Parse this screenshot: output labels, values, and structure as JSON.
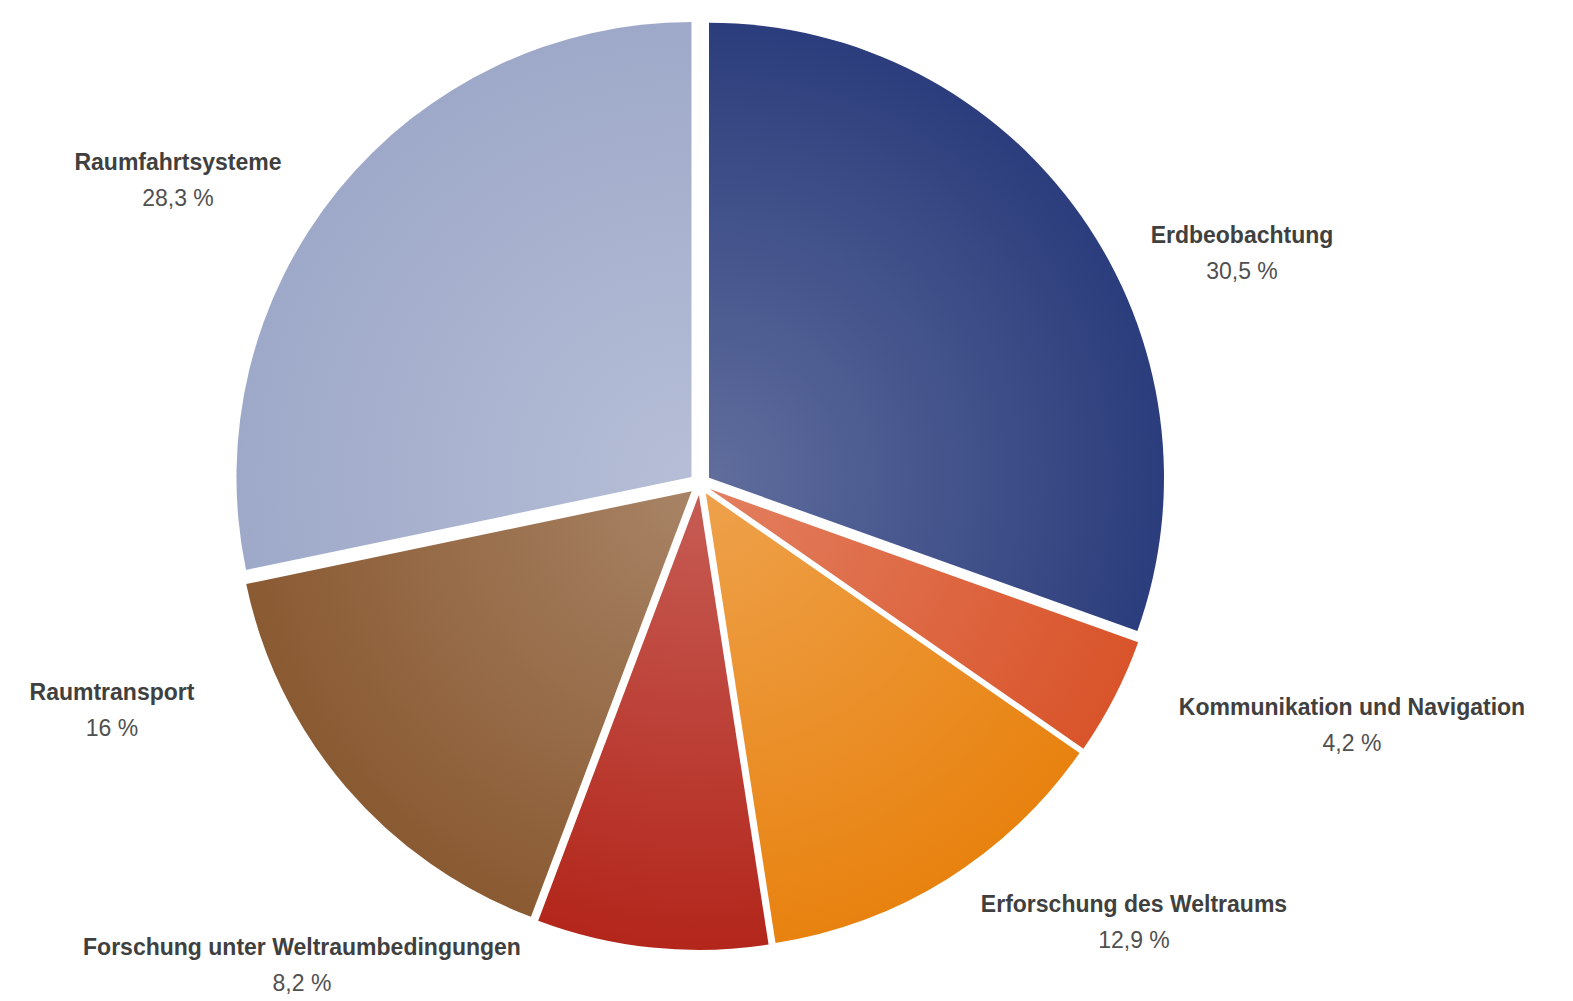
{
  "chart_data": {
    "type": "pie",
    "categories": [
      "Erdbeobachtung",
      "Kommunikation und Navigation",
      "Erforschung des Weltraums",
      "Forschung unter Weltraumbedingungen",
      "Raumtransport",
      "Raumfahrtsysteme"
    ],
    "values": [
      30.5,
      4.2,
      12.9,
      8.2,
      16,
      28.3
    ],
    "value_labels": [
      "30,5 %",
      "4,2 %",
      "12,9 %",
      "8,2 %",
      "16 %",
      "28,3 %"
    ],
    "colors": [
      "#2b3d7c",
      "#d9542a",
      "#e8820f",
      "#b3261b",
      "#8a5a32",
      "#9ea9c9"
    ],
    "data_labels": true
  }
}
